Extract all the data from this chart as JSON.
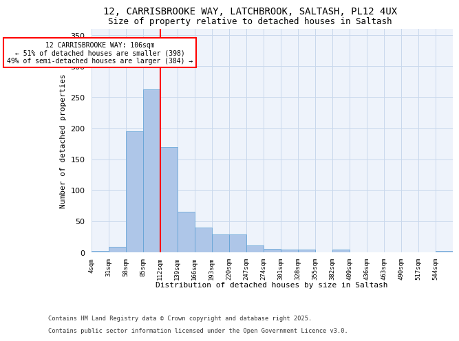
{
  "title_line1": "12, CARRISBROOKE WAY, LATCHBROOK, SALTASH, PL12 4UX",
  "title_line2": "Size of property relative to detached houses in Saltash",
  "xlabel": "Distribution of detached houses by size in Saltash",
  "ylabel": "Number of detached properties",
  "bins": [
    "4sqm",
    "31sqm",
    "58sqm",
    "85sqm",
    "112sqm",
    "139sqm",
    "166sqm",
    "193sqm",
    "220sqm",
    "247sqm",
    "274sqm",
    "301sqm",
    "328sqm",
    "355sqm",
    "382sqm",
    "409sqm",
    "436sqm",
    "463sqm",
    "490sqm",
    "517sqm",
    "544sqm"
  ],
  "bar_values": [
    2,
    9,
    195,
    262,
    170,
    65,
    40,
    29,
    29,
    11,
    6,
    4,
    4,
    0,
    4,
    0,
    0,
    0,
    0,
    0,
    2
  ],
  "bar_color": "#aec6e8",
  "bar_edge_color": "#5a9fd4",
  "bg_color": "#eef3fb",
  "grid_color": "#c8d8ec",
  "vline_x_index": 4,
  "vline_color": "red",
  "annotation_text": "12 CARRISBROOKE WAY: 106sqm\n← 51% of detached houses are smaller (398)\n49% of semi-detached houses are larger (384) →",
  "ylim": [
    0,
    360
  ],
  "yticks": [
    0,
    50,
    100,
    150,
    200,
    250,
    300,
    350
  ],
  "footer_line1": "Contains HM Land Registry data © Crown copyright and database right 2025.",
  "footer_line2": "Contains public sector information licensed under the Open Government Licence v3.0."
}
